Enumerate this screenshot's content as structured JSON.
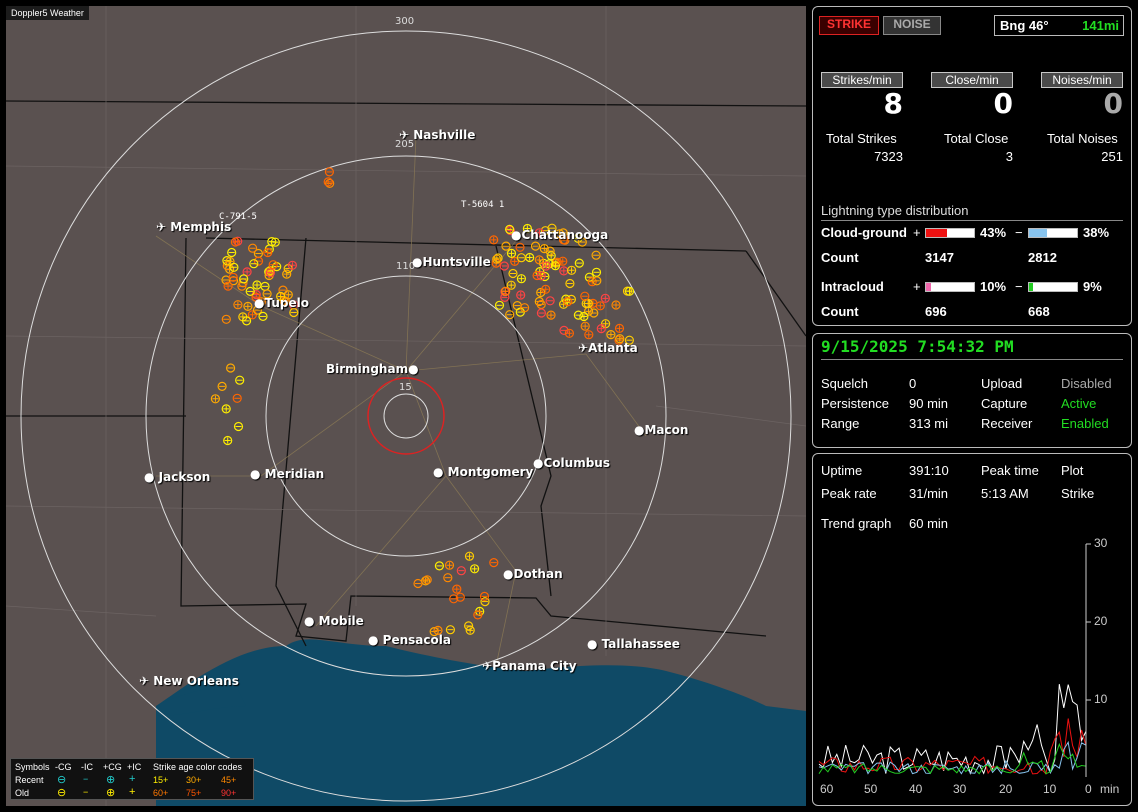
{
  "app_title": "Doppler5 Weather",
  "range_labels": {
    "r300": "300",
    "r205": "205",
    "r110": "110",
    "r15": "15"
  },
  "cities": [
    {
      "name": "Nashville",
      "type": "airport"
    },
    {
      "name": "Memphis",
      "type": "airport"
    },
    {
      "name": "Chattanooga",
      "type": "dot"
    },
    {
      "name": "Huntsville",
      "type": "dot"
    },
    {
      "name": "Tupelo",
      "type": "dot"
    },
    {
      "name": "Atlanta",
      "type": "airport"
    },
    {
      "name": "Birmingham",
      "type": "dot"
    },
    {
      "name": "Macon",
      "type": "dot"
    },
    {
      "name": "Jackson",
      "type": "dot"
    },
    {
      "name": "Meridian",
      "type": "dot"
    },
    {
      "name": "Montgomery",
      "type": "dot"
    },
    {
      "name": "Columbus",
      "type": "dot"
    },
    {
      "name": "Dothan",
      "type": "dot"
    },
    {
      "name": "Mobile",
      "type": "dot"
    },
    {
      "name": "Pensacola",
      "type": "dot"
    },
    {
      "name": "Tallahassee",
      "type": "dot"
    },
    {
      "name": "Panama City",
      "type": "airport"
    },
    {
      "name": "New Orleans",
      "type": "airport"
    }
  ],
  "storm_tags": {
    "tag1": "T-5604 1",
    "tag2": "C-791-5"
  },
  "legend": {
    "symbols": "Symbols",
    "col_neg_cg": "-CG",
    "col_neg_ic": "-IC",
    "col_pos_cg": "+CG",
    "col_pos_ic": "+IC",
    "age_title": "Strike age color codes",
    "recent": "Recent",
    "old": "Old",
    "age_recent": [
      "15+",
      "30+",
      "45+"
    ],
    "age_old": [
      "60+",
      "75+",
      "90+"
    ]
  },
  "top": {
    "strike_btn": "STRIKE",
    "noise_btn": "NOISE",
    "bearing": "Bng 46°",
    "distance": "141mi"
  },
  "rates": {
    "strikes_label": "Strikes/min",
    "close_label": "Close/min",
    "noises_label": "Noises/min",
    "strikes_value": "8",
    "close_value": "0",
    "noises_value": "0"
  },
  "totals": {
    "strikes_label": "Total Strikes",
    "close_label": "Total Close",
    "noises_label": "Total Noises",
    "strikes_value": "7323",
    "close_value": "3",
    "noises_value": "251"
  },
  "distribution": {
    "title": "Lightning type distribution",
    "cg_label": "Cloud-ground",
    "ic_label": "Intracloud",
    "count_label": "Count",
    "cg_pos_pct": "43%",
    "cg_neg_pct": "38%",
    "cg_pos_fill": 0.43,
    "cg_neg_fill": 0.38,
    "cg_pos_count": "3147",
    "cg_neg_count": "2812",
    "ic_pos_pct": "10%",
    "ic_neg_pct": "9%",
    "ic_pos_fill": 0.1,
    "ic_neg_fill": 0.09,
    "ic_pos_count": "696",
    "ic_neg_count": "668",
    "plus": "+",
    "minus": "−"
  },
  "status": {
    "datetime": "9/15/2025 7:54:32 PM",
    "squelch_label": "Squelch",
    "squelch_value": "0",
    "persistence_label": "Persistence",
    "persistence_value": "90 min",
    "range_label": "Range",
    "range_value": "313 mi",
    "upload_label": "Upload",
    "upload_value": "Disabled",
    "capture_label": "Capture",
    "capture_value": "Active",
    "receiver_label": "Receiver",
    "receiver_value": "Enabled"
  },
  "stats": {
    "uptime_label": "Uptime",
    "uptime_value": "391:10",
    "peak_time_label": "Peak time",
    "peak_time_value": "5:13 AM",
    "plot_label": "Plot",
    "plot_value": "Strike",
    "peak_rate_label": "Peak rate",
    "peak_rate_value": "31/min",
    "trend_label": "Trend graph",
    "trend_value": "60 min"
  },
  "trend": {
    "y_ticks": [
      "30",
      "20",
      "10"
    ],
    "x_ticks": [
      "60",
      "50",
      "40",
      "30",
      "20",
      "10",
      "0"
    ],
    "x_unit": "min"
  },
  "colors": {
    "strike_red": "#dd2222",
    "cg_pos": "#ee1111",
    "cg_neg": "#88c4ee",
    "ic_pos": "#ee66aa",
    "ic_neg": "#22cc22",
    "status_green": "#22dd22"
  }
}
